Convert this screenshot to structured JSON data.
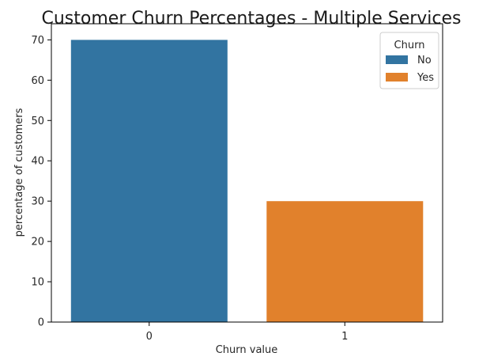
{
  "chart_data": {
    "type": "bar",
    "title": "Customer Churn Percentages - Multiple Services",
    "xlabel": "Churn value",
    "ylabel": "percentage of customers",
    "categories": [
      "0",
      "1"
    ],
    "series": [
      {
        "name": "No",
        "values": [
          70.0,
          null
        ],
        "color": "#3274a1"
      },
      {
        "name": "Yes",
        "values": [
          null,
          30.0
        ],
        "color": "#e1812c"
      }
    ],
    "ylim": [
      0,
      74
    ],
    "yticks": [
      0,
      10,
      20,
      30,
      40,
      50,
      60,
      70
    ],
    "grid": false,
    "legend": {
      "title": "Churn",
      "position": "top-right"
    }
  }
}
